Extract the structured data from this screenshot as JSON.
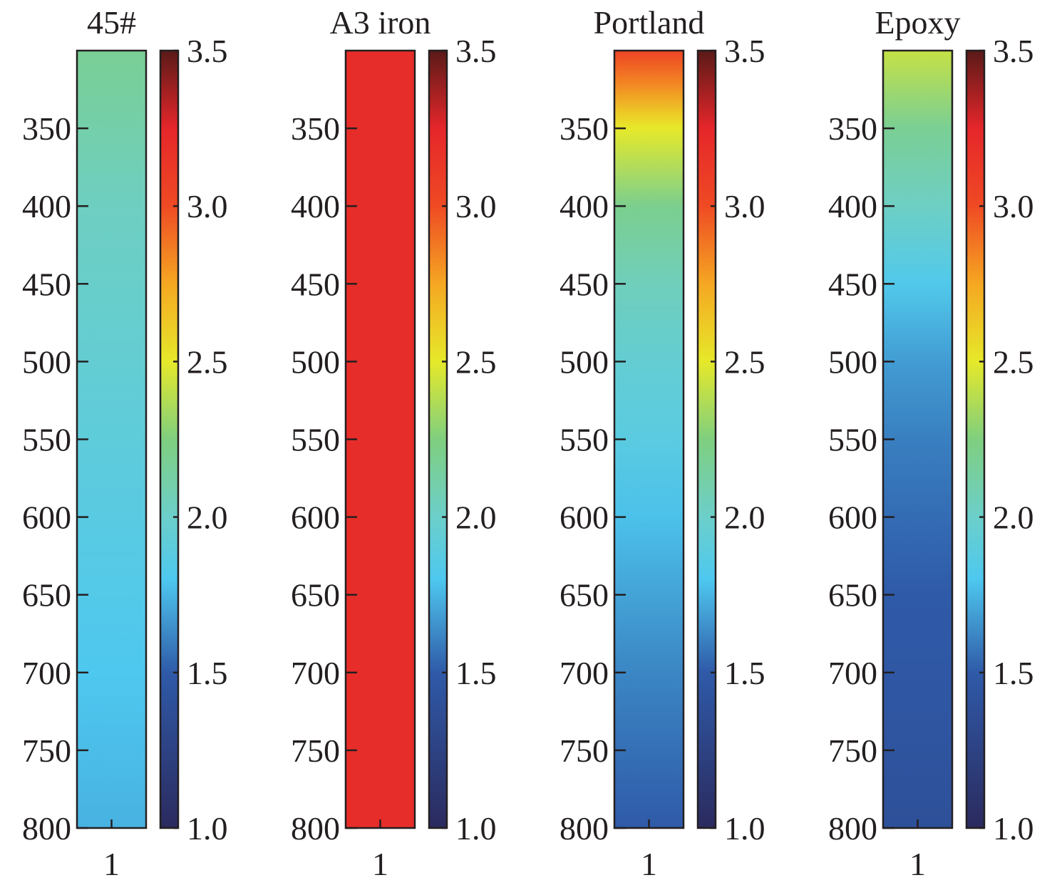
{
  "chart_data": [
    {
      "type": "heatmap",
      "title": "45#",
      "x_categories": [
        "1"
      ],
      "y_range": [
        300,
        800
      ],
      "y_ticks": [
        "350",
        "400",
        "450",
        "500",
        "550",
        "600",
        "650",
        "700",
        "750",
        "800"
      ],
      "profile": {
        "y": [
          300,
          400,
          500,
          600,
          700,
          800
        ],
        "value": [
          2.18,
          2.03,
          1.95,
          1.87,
          1.8,
          1.74
        ]
      },
      "colorbar": {
        "range": [
          1.0,
          3.5
        ],
        "ticks": [
          "1.0",
          "1.5",
          "2.0",
          "2.5",
          "3.0",
          "3.5"
        ]
      }
    },
    {
      "type": "heatmap",
      "title": "A3 iron",
      "x_categories": [
        "1"
      ],
      "y_range": [
        300,
        800
      ],
      "y_ticks": [
        "350",
        "400",
        "450",
        "500",
        "550",
        "600",
        "650",
        "700",
        "750",
        "800"
      ],
      "profile": {
        "y": [
          300,
          800
        ],
        "value": [
          3.2,
          3.2
        ]
      },
      "colorbar": {
        "range": [
          1.0,
          3.5
        ],
        "ticks": [
          "1.0",
          "1.5",
          "2.0",
          "2.5",
          "3.0",
          "3.5"
        ]
      }
    },
    {
      "type": "heatmap",
      "title": "Portland",
      "x_categories": [
        "1"
      ],
      "y_range": [
        300,
        800
      ],
      "y_ticks": [
        "350",
        "400",
        "450",
        "500",
        "550",
        "600",
        "650",
        "700",
        "750",
        "800"
      ],
      "profile": {
        "y": [
          300,
          320,
          340,
          350,
          400,
          450,
          500,
          550,
          600,
          650,
          700,
          750,
          800
        ],
        "value": [
          3.05,
          2.85,
          2.62,
          2.5,
          2.2,
          2.05,
          1.95,
          1.88,
          1.78,
          1.7,
          1.62,
          1.56,
          1.5
        ]
      },
      "colorbar": {
        "range": [
          1.0,
          3.5
        ],
        "ticks": [
          "1.0",
          "1.5",
          "2.0",
          "2.5",
          "3.0",
          "3.5"
        ]
      }
    },
    {
      "type": "heatmap",
      "title": "Epoxy",
      "x_categories": [
        "1"
      ],
      "y_range": [
        300,
        800
      ],
      "y_ticks": [
        "350",
        "400",
        "450",
        "500",
        "550",
        "600",
        "650",
        "700",
        "750",
        "800"
      ],
      "profile": {
        "y": [
          300,
          350,
          400,
          450,
          500,
          550,
          600,
          650,
          700,
          750,
          800
        ],
        "value": [
          2.42,
          2.18,
          2.02,
          1.82,
          1.68,
          1.6,
          1.55,
          1.5,
          1.47,
          1.44,
          1.4
        ]
      },
      "colorbar": {
        "range": [
          1.0,
          3.5
        ],
        "ticks": [
          "1.0",
          "1.5",
          "2.0",
          "2.5",
          "3.0",
          "3.5"
        ]
      }
    }
  ],
  "colormap": {
    "stops": [
      {
        "v": 1.0,
        "color": "#2b2a5e"
      },
      {
        "v": 1.5,
        "color": "#2f5aa8"
      },
      {
        "v": 1.8,
        "color": "#4ec8ef"
      },
      {
        "v": 2.0,
        "color": "#6ccfca"
      },
      {
        "v": 2.25,
        "color": "#7fcf7f"
      },
      {
        "v": 2.5,
        "color": "#e6e92a"
      },
      {
        "v": 2.75,
        "color": "#f5a722"
      },
      {
        "v": 3.0,
        "color": "#ef4a24"
      },
      {
        "v": 3.25,
        "color": "#e5262a"
      },
      {
        "v": 3.5,
        "color": "#5a1a18"
      }
    ]
  }
}
